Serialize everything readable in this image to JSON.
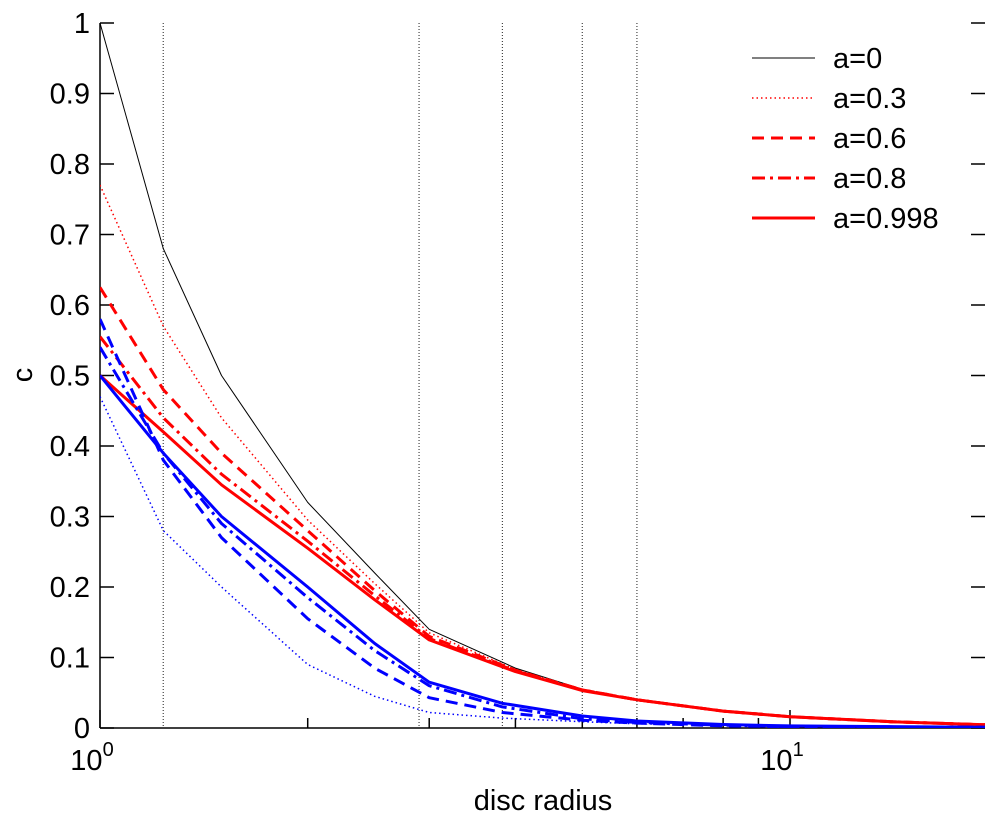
{
  "chart_data": {
    "type": "line",
    "xlabel": "disc radius",
    "ylabel": "c",
    "xscale": "log",
    "xlim": [
      1,
      20
    ],
    "ylim": [
      0,
      1
    ],
    "grid": false,
    "legend_position": "top-right",
    "x_ticks": [
      {
        "value": 1,
        "base": "10",
        "exp": "0"
      },
      {
        "value": 10,
        "base": "10",
        "exp": "1"
      }
    ],
    "y_ticks": [
      "0",
      "0.1",
      "0.2",
      "0.3",
      "0.4",
      "0.5",
      "0.6",
      "0.7",
      "0.8",
      "0.9",
      "1"
    ],
    "y_tick_values": [
      0,
      0.1,
      0.2,
      0.3,
      0.4,
      0.5,
      0.6,
      0.7,
      0.8,
      0.9,
      1
    ],
    "vertical_lines": [
      1.235,
      2.9,
      3.83,
      5.0,
      6.0
    ],
    "legend": [
      {
        "label": "a=0",
        "color": "#000000",
        "style": "solid",
        "width": 1
      },
      {
        "label": "a=0.3",
        "color": "#ff0000",
        "style": "dotted",
        "width": 1.5
      },
      {
        "label": "a=0.6",
        "color": "#ff0000",
        "style": "dashed",
        "width": 3
      },
      {
        "label": "a=0.8",
        "color": "#ff0000",
        "style": "dashdot",
        "width": 3
      },
      {
        "label": "a=0.998",
        "color": "#ff0000",
        "style": "solid",
        "width": 3
      }
    ],
    "series": [
      {
        "name": "a=0",
        "color": "#000000",
        "style": "solid",
        "width": 1,
        "x": [
          1,
          1.235,
          1.5,
          2,
          2.5,
          3,
          4,
          5,
          6,
          8,
          10,
          14,
          20
        ],
        "y": [
          1,
          0.68,
          0.5,
          0.32,
          0.22,
          0.14,
          0.085,
          0.055,
          0.04,
          0.024,
          0.016,
          0.009,
          0.004
        ]
      },
      {
        "name": "a=0.3",
        "color": "#ff0000",
        "style": "dotted",
        "width": 1.5,
        "x": [
          1,
          1.235,
          1.5,
          2,
          2.5,
          3,
          4,
          5,
          6,
          8,
          10,
          14,
          20
        ],
        "y": [
          0.77,
          0.57,
          0.44,
          0.295,
          0.205,
          0.135,
          0.083,
          0.054,
          0.04,
          0.024,
          0.016,
          0.009,
          0.004
        ]
      },
      {
        "name": "a=0.6",
        "color": "#ff0000",
        "style": "dashed",
        "width": 3,
        "x": [
          1,
          1.235,
          1.5,
          2,
          2.5,
          3,
          4,
          5,
          6,
          8,
          10,
          14,
          20
        ],
        "y": [
          0.625,
          0.48,
          0.39,
          0.28,
          0.195,
          0.13,
          0.082,
          0.054,
          0.04,
          0.024,
          0.016,
          0.009,
          0.004
        ]
      },
      {
        "name": "a=0.8",
        "color": "#ff0000",
        "style": "dashdot",
        "width": 3,
        "x": [
          1,
          1.235,
          1.5,
          2,
          2.5,
          3,
          4,
          5,
          6,
          8,
          10,
          14,
          20
        ],
        "y": [
          0.555,
          0.44,
          0.36,
          0.265,
          0.188,
          0.127,
          0.081,
          0.054,
          0.04,
          0.024,
          0.016,
          0.009,
          0.004
        ]
      },
      {
        "name": "a=0.998",
        "color": "#ff0000",
        "style": "solid",
        "width": 3,
        "x": [
          1,
          1.235,
          1.5,
          2,
          2.5,
          3,
          4,
          5,
          6,
          8,
          10,
          14,
          20
        ],
        "y": [
          0.5,
          0.42,
          0.345,
          0.255,
          0.182,
          0.125,
          0.08,
          0.053,
          0.04,
          0.024,
          0.016,
          0.009,
          0.004
        ]
      },
      {
        "color": "#0000ff",
        "style": "dotted",
        "width": 1.5,
        "x": [
          1,
          1.235,
          1.5,
          2,
          2.5,
          3,
          3.83,
          5,
          6,
          10,
          20
        ],
        "y": [
          0.47,
          0.28,
          0.2,
          0.09,
          0.045,
          0.022,
          0.014,
          0.009,
          0.006,
          0.002,
          0.001
        ]
      },
      {
        "color": "#0000ff",
        "style": "dashed",
        "width": 3,
        "x": [
          1,
          1.235,
          1.5,
          2,
          2.5,
          3,
          3.83,
          5,
          6,
          8,
          10,
          20
        ],
        "y": [
          0.58,
          0.38,
          0.27,
          0.155,
          0.085,
          0.043,
          0.022,
          0.011,
          0.007,
          0.003,
          0.002,
          0.001
        ]
      },
      {
        "color": "#0000ff",
        "style": "dashdot",
        "width": 3,
        "x": [
          1,
          1.235,
          1.5,
          2,
          2.5,
          3,
          3.83,
          5,
          6,
          8,
          10,
          20
        ],
        "y": [
          0.54,
          0.39,
          0.29,
          0.185,
          0.11,
          0.06,
          0.03,
          0.013,
          0.008,
          0.004,
          0.002,
          0.001
        ]
      },
      {
        "color": "#0000ff",
        "style": "solid",
        "width": 3,
        "x": [
          1,
          1.235,
          1.5,
          2,
          2.5,
          3,
          3.83,
          5,
          6,
          8,
          10,
          20
        ],
        "y": [
          0.5,
          0.39,
          0.3,
          0.2,
          0.12,
          0.065,
          0.035,
          0.017,
          0.01,
          0.005,
          0.003,
          0.001
        ]
      }
    ]
  }
}
